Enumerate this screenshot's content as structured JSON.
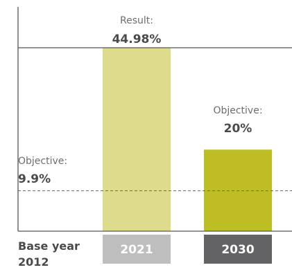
{
  "chart_data": {
    "type": "bar",
    "categories": [
      "2021",
      "2030"
    ],
    "values": [
      44.98,
      20
    ],
    "value_labels": [
      "44.98%",
      "20%"
    ],
    "value_captions": [
      "Result:",
      "Objective:"
    ],
    "baseline": {
      "category_line1": "Base year",
      "category_line2": "2012",
      "caption": "Objective:",
      "label": "9.9%",
      "value": 9.9
    },
    "ylim": [
      0,
      55
    ],
    "grid": false,
    "colors": {
      "bar_2021": "#dcdc8c",
      "bar_2030": "#bdbe24",
      "cat_2021": "#bebebe",
      "cat_2030": "#636366",
      "axis": "#555555",
      "reference_line": "#666666"
    }
  }
}
